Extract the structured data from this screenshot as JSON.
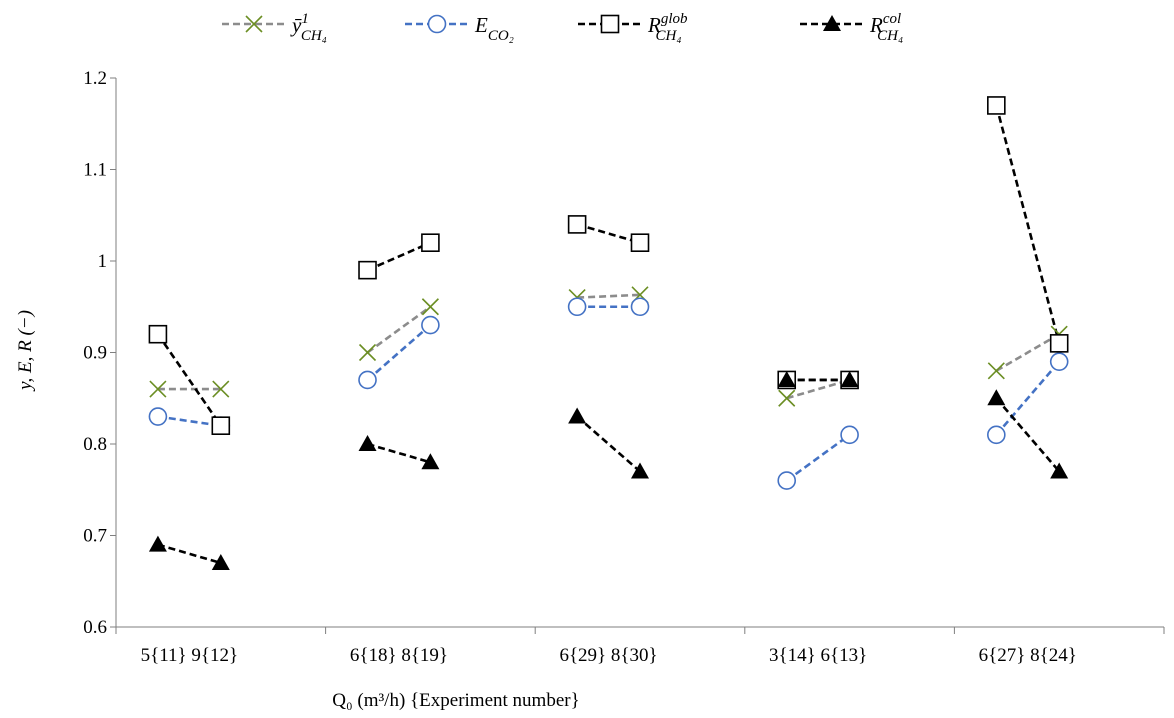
{
  "chart_data": {
    "type": "line",
    "ylabel": "y, E, R (−)",
    "xlabel": "Q₀ (m³/h) {Experiment number}",
    "ylim": [
      0.6,
      1.2
    ],
    "yticks": [
      "0.6",
      "0.7",
      "0.8",
      "0.9",
      "1",
      "1.1",
      "1.2"
    ],
    "gridlines": false,
    "legend_position": "top",
    "groups": [
      {
        "labels": [
          "5{11}",
          "9{12}"
        ]
      },
      {
        "labels": [
          "6{18}",
          "8{19}"
        ]
      },
      {
        "labels": [
          "6{29}",
          "8{30}"
        ]
      },
      {
        "labels": [
          "3{14}",
          "6{13}"
        ]
      },
      {
        "labels": [
          "6{27}",
          "8{24}"
        ]
      }
    ],
    "series": [
      {
        "name": "ȳ¹CH₄",
        "legend_base": "ȳ",
        "legend_sup": "1",
        "legend_sub": "CH₄",
        "marker": "x",
        "line_color": "#8c8c8c",
        "marker_color": "#6b8e23",
        "values": [
          [
            0.86,
            0.86
          ],
          [
            0.9,
            0.95
          ],
          [
            0.96,
            0.963
          ],
          [
            0.85,
            0.87
          ],
          [
            0.88,
            0.92
          ]
        ]
      },
      {
        "name": "ECO₂",
        "legend_base": "E",
        "legend_sup": "",
        "legend_sub": "CO₂",
        "marker": "circle",
        "line_color": "#4472c4",
        "marker_color": "#4472c4",
        "values": [
          [
            0.83,
            0.82
          ],
          [
            0.87,
            0.93
          ],
          [
            0.95,
            0.95
          ],
          [
            0.76,
            0.81
          ],
          [
            0.81,
            0.89
          ]
        ]
      },
      {
        "name": "RglobCH₄",
        "legend_base": "R",
        "legend_sup": "glob",
        "legend_sub": "CH₄",
        "marker": "square",
        "line_color": "#000000",
        "marker_color": "#000000",
        "values": [
          [
            0.92,
            0.82
          ],
          [
            0.99,
            1.02
          ],
          [
            1.04,
            1.02
          ],
          [
            0.87,
            0.87
          ],
          [
            1.17,
            0.91
          ]
        ]
      },
      {
        "name": "RcolCH₄",
        "legend_base": "R",
        "legend_sup": "col",
        "legend_sub": "CH₄",
        "marker": "triangle",
        "line_color": "#000000",
        "marker_color": "#000000",
        "values": [
          [
            0.69,
            0.67
          ],
          [
            0.8,
            0.78
          ],
          [
            0.83,
            0.77
          ],
          [
            0.87,
            0.87
          ],
          [
            0.85,
            0.77
          ]
        ]
      }
    ]
  }
}
